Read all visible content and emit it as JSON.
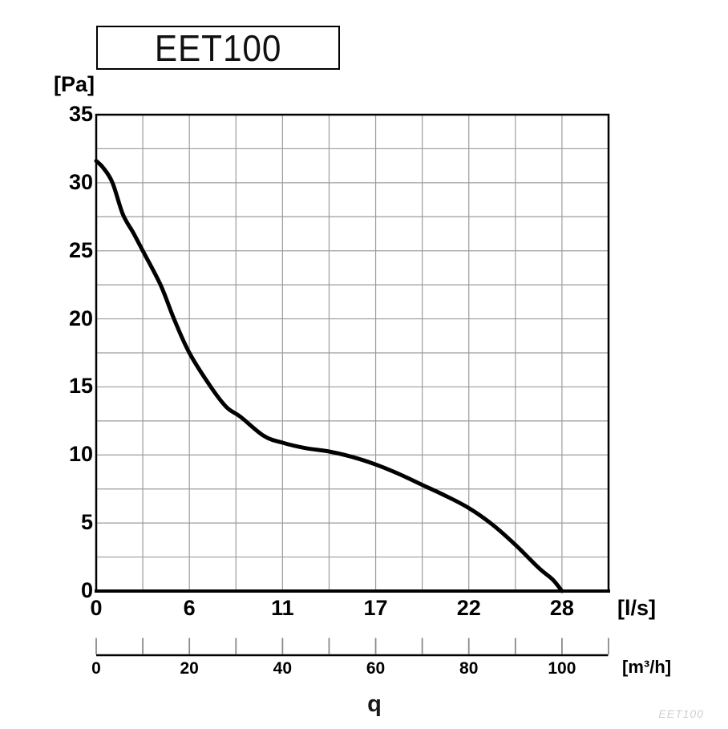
{
  "title": "EET100",
  "watermark": "EET100",
  "bottom_label": "q",
  "colors": {
    "background": "#ffffff",
    "curve": "#000000",
    "grid": "#9c9c9c",
    "axis": "#000000",
    "tick": "#8a8a8a",
    "watermark": "#cfcfcf"
  },
  "chart_data": {
    "type": "line",
    "title": "EET100",
    "xlabel": "q",
    "ylabel": "Pa",
    "ylabel_display": "[Pa]",
    "grid": true,
    "y_axis": {
      "min": 0,
      "max": 35,
      "major_step": 5,
      "minor_step": 2.5,
      "labels": [
        "0",
        "5",
        "10",
        "15",
        "20",
        "25",
        "30",
        "35"
      ]
    },
    "x_primary": {
      "unit": "[l/s]",
      "ticks": [
        {
          "m3h": 0,
          "label": "0"
        },
        {
          "m3h": 20,
          "label": "6"
        },
        {
          "m3h": 40,
          "label": "11"
        },
        {
          "m3h": 60,
          "label": "17"
        },
        {
          "m3h": 80,
          "label": "22"
        },
        {
          "m3h": 100,
          "label": "28"
        }
      ]
    },
    "x_secondary": {
      "unit": "[m³/h]",
      "min": 0,
      "max": 110,
      "tick_step": 10,
      "labels": [
        {
          "m3h": 0,
          "label": "0"
        },
        {
          "m3h": 20,
          "label": "20"
        },
        {
          "m3h": 40,
          "label": "40"
        },
        {
          "m3h": 60,
          "label": "60"
        },
        {
          "m3h": 80,
          "label": "80"
        },
        {
          "m3h": 100,
          "label": "100"
        }
      ]
    },
    "series": [
      {
        "name": "EET100",
        "points_m3h_pa": [
          [
            0,
            31.6
          ],
          [
            1.5,
            31.1
          ],
          [
            3.5,
            30.0
          ],
          [
            5.7,
            27.7
          ],
          [
            8,
            26.3
          ],
          [
            10,
            25.0
          ],
          [
            13.8,
            22.5
          ],
          [
            16.7,
            20.0
          ],
          [
            20,
            17.5
          ],
          [
            24.6,
            15.0
          ],
          [
            28,
            13.5
          ],
          [
            31,
            12.8
          ],
          [
            36,
            11.4
          ],
          [
            40,
            10.9
          ],
          [
            45,
            10.5
          ],
          [
            50,
            10.25
          ],
          [
            55,
            9.85
          ],
          [
            60,
            9.3
          ],
          [
            65,
            8.6
          ],
          [
            70,
            7.8
          ],
          [
            75,
            7.0
          ],
          [
            80,
            6.1
          ],
          [
            85,
            4.9
          ],
          [
            90,
            3.4
          ],
          [
            95,
            1.7
          ],
          [
            98,
            0.85
          ],
          [
            100,
            0
          ]
        ]
      }
    ]
  }
}
